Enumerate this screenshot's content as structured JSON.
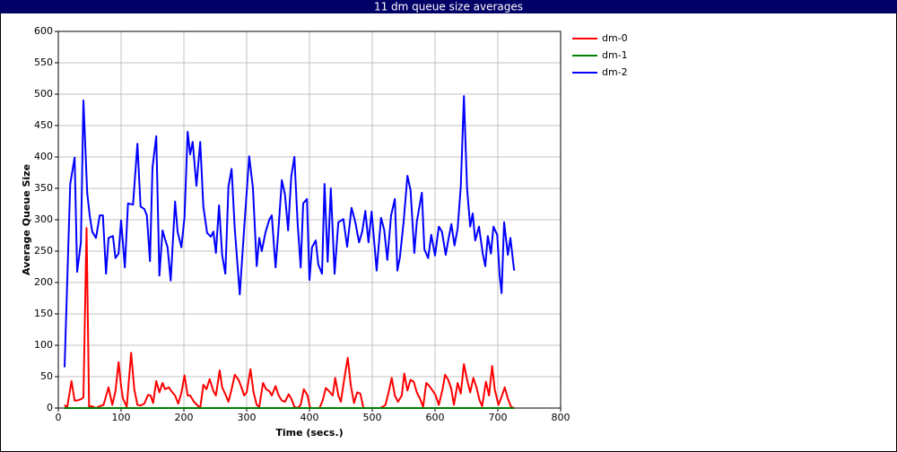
{
  "chart_data": {
    "type": "line",
    "title": "11 dm queue size averages",
    "x_label": "Time (secs.)",
    "y_label": "Average Queue Size",
    "xlim": [
      0,
      800
    ],
    "xticks": [
      0,
      100,
      200,
      300,
      400,
      500,
      600,
      700,
      800
    ],
    "ylim": [
      0,
      600
    ],
    "yticks": [
      0,
      50,
      100,
      150,
      200,
      250,
      300,
      350,
      400,
      450,
      500,
      550,
      600
    ],
    "grid": true,
    "legend": "right",
    "series": [
      {
        "name": "dm-0",
        "color": "#ff0000",
        "x": [
          10,
          14,
          21,
          26,
          30,
          36,
          40,
          45,
          49,
          53,
          60,
          66,
          72,
          80,
          86,
          91,
          96,
          100,
          103,
          109,
          116,
          121,
          126,
          131,
          137,
          143,
          147,
          151,
          156,
          161,
          166,
          170,
          176,
          180,
          186,
          191,
          196,
          201,
          206,
          210,
          216,
          221,
          226,
          231,
          236,
          241,
          247,
          251,
          257,
          261,
          267,
          271,
          276,
          281,
          287,
          291,
          296,
          300,
          306,
          311,
          316,
          320,
          326,
          331,
          336,
          340,
          346,
          351,
          356,
          361,
          367,
          371,
          376,
          381,
          386,
          391,
          397,
          401,
          406,
          416,
          421,
          426,
          431,
          437,
          441,
          446,
          450,
          456,
          461,
          466,
          471,
          476,
          481,
          486,
          496,
          506,
          512,
          517,
          521,
          526,
          531,
          536,
          541,
          547,
          551,
          556,
          561,
          566,
          571,
          576,
          581,
          586,
          591,
          596,
          601,
          606,
          612,
          616,
          621,
          626,
          630,
          636,
          641,
          646,
          651,
          656,
          661,
          666,
          671,
          675,
          681,
          686,
          691,
          695,
          701,
          706,
          711,
          716,
          721,
          726
        ],
        "values": [
          5,
          0,
          43,
          12,
          12,
          14,
          17,
          287,
          2,
          3,
          0,
          3,
          5,
          33,
          5,
          27,
          73,
          35,
          15,
          2,
          88,
          30,
          5,
          4,
          7,
          21,
          20,
          8,
          43,
          25,
          40,
          30,
          33,
          27,
          20,
          7,
          24,
          52,
          20,
          20,
          10,
          5,
          0,
          37,
          30,
          46,
          27,
          20,
          60,
          33,
          20,
          10,
          30,
          53,
          45,
          35,
          20,
          25,
          62,
          25,
          5,
          2,
          40,
          30,
          27,
          20,
          35,
          20,
          12,
          10,
          22,
          15,
          2,
          0,
          5,
          30,
          20,
          0,
          0,
          0,
          12,
          32,
          27,
          20,
          48,
          20,
          10,
          50,
          80,
          35,
          8,
          25,
          23,
          0,
          0,
          0,
          0,
          2,
          5,
          25,
          48,
          20,
          10,
          20,
          55,
          28,
          45,
          42,
          25,
          15,
          2,
          40,
          35,
          28,
          20,
          5,
          30,
          53,
          45,
          30,
          5,
          40,
          23,
          70,
          45,
          25,
          48,
          33,
          12,
          3,
          42,
          20,
          67,
          30,
          5,
          18,
          33,
          15,
          2,
          0
        ]
      },
      {
        "name": "dm-1",
        "color": "#008000",
        "x": [
          10,
          726
        ],
        "values": [
          0,
          0
        ]
      },
      {
        "name": "dm-2",
        "color": "#0000ff",
        "x": [
          10,
          19,
          26,
          30,
          36,
          40,
          46,
          50,
          54,
          60,
          66,
          71,
          76,
          80,
          87,
          91,
          96,
          100,
          106,
          111,
          119,
          126,
          131,
          137,
          141,
          146,
          150,
          156,
          161,
          166,
          170,
          174,
          179,
          186,
          190,
          196,
          201,
          206,
          210,
          214,
          220,
          226,
          231,
          237,
          243,
          247,
          251,
          256,
          261,
          266,
          271,
          276,
          281,
          289,
          296,
          304,
          310,
          316,
          320,
          324,
          330,
          336,
          340,
          346,
          350,
          356,
          361,
          366,
          371,
          376,
          381,
          386,
          390,
          396,
          400,
          404,
          410,
          414,
          420,
          424,
          429,
          434,
          440,
          446,
          454,
          460,
          467,
          473,
          479,
          484,
          489,
          494,
          499,
          507,
          514,
          519,
          524,
          530,
          536,
          540,
          544,
          550,
          556,
          561,
          567,
          571,
          579,
          583,
          589,
          594,
          600,
          606,
          611,
          617,
          621,
          626,
          631,
          636,
          641,
          646,
          651,
          656,
          660,
          664,
          670,
          676,
          680,
          684,
          689,
          693,
          699,
          703,
          706,
          710,
          716,
          720,
          726
        ],
        "values": [
          65,
          357,
          399,
          217,
          264,
          490,
          343,
          307,
          281,
          271,
          307,
          307,
          214,
          271,
          274,
          239,
          246,
          299,
          224,
          326,
          324,
          421,
          321,
          317,
          307,
          234,
          383,
          433,
          211,
          283,
          269,
          256,
          203,
          329,
          281,
          256,
          304,
          440,
          404,
          424,
          354,
          424,
          321,
          279,
          273,
          281,
          247,
          323,
          243,
          214,
          353,
          381,
          286,
          181,
          286,
          401,
          350,
          226,
          271,
          250,
          280,
          300,
          307,
          224,
          276,
          363,
          340,
          283,
          369,
          400,
          297,
          224,
          326,
          333,
          204,
          256,
          267,
          229,
          214,
          357,
          233,
          350,
          214,
          296,
          301,
          257,
          319,
          296,
          264,
          281,
          314,
          264,
          313,
          219,
          303,
          284,
          236,
          307,
          333,
          219,
          240,
          297,
          370,
          347,
          247,
          297,
          343,
          253,
          239,
          276,
          243,
          289,
          281,
          244,
          267,
          293,
          259,
          286,
          353,
          497,
          350,
          289,
          310,
          267,
          289,
          246,
          226,
          274,
          246,
          289,
          276,
          210,
          183,
          296,
          244,
          271,
          219
        ]
      }
    ]
  }
}
